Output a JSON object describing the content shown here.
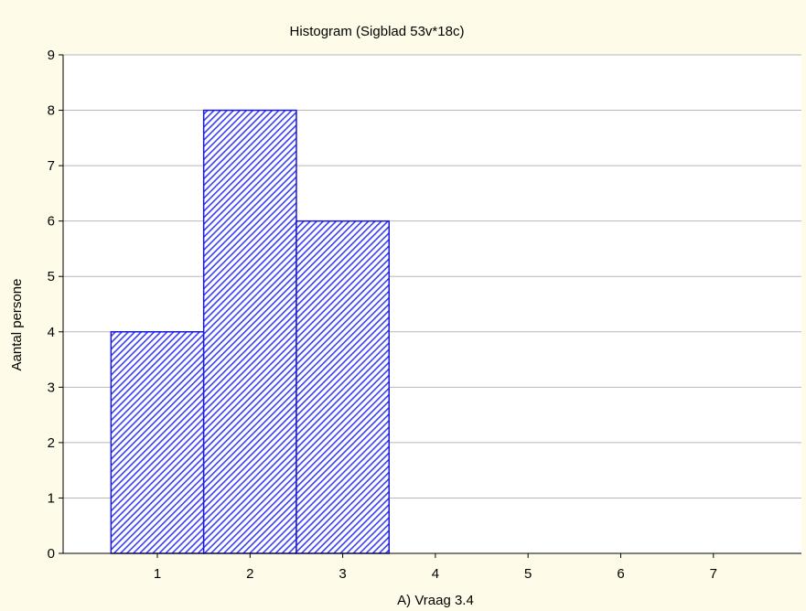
{
  "colors": {
    "background": "#fefce8",
    "plot_background": "#ffffff",
    "bar_fill": "#3a3df2",
    "bar_stroke": "#1a1ad6",
    "grid": "#b8b8b8",
    "axis": "#000000"
  },
  "chart_data": {
    "type": "bar",
    "title": "Histogram (Sigblad 53v*18c)",
    "xlabel": "A) Vraag 3.4",
    "ylabel": "Aantal persone",
    "categories": [
      "1",
      "2",
      "3",
      "4",
      "5",
      "6",
      "7"
    ],
    "x_ticks": [
      "1",
      "2",
      "3",
      "4",
      "5",
      "6",
      "7"
    ],
    "values": [
      4,
      8,
      6,
      0,
      0,
      0,
      0
    ],
    "ylim": [
      0,
      9
    ],
    "y_ticks": [
      "0",
      "1",
      "2",
      "3",
      "4",
      "5",
      "6",
      "7",
      "8",
      "9"
    ],
    "grid": "horizontal",
    "legend": "none",
    "bar_pattern": "diagonal-hatch"
  }
}
